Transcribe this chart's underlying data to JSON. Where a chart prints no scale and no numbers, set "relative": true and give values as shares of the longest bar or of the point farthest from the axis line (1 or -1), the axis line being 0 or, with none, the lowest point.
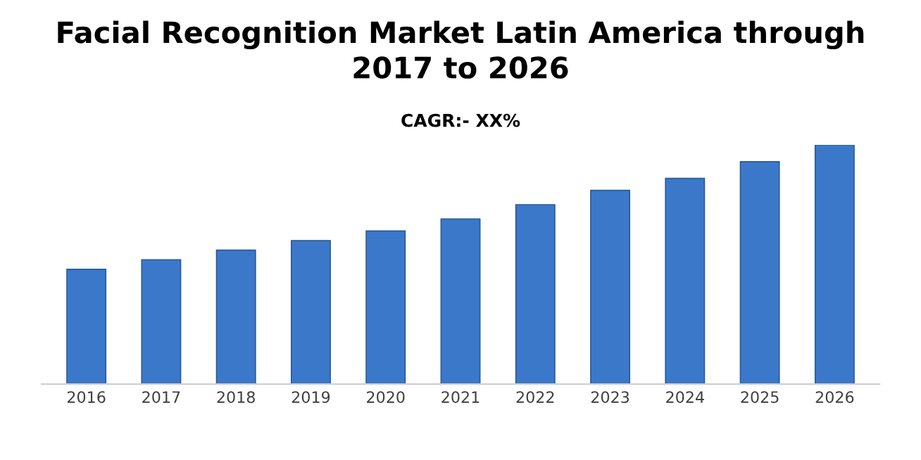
{
  "chart_data": {
    "type": "bar",
    "title": "Facial Recognition Market Latin America through\n2017 to 2026",
    "subtitle": "CAGR:- XX%",
    "categories": [
      "2016",
      "2017",
      "2018",
      "2019",
      "2020",
      "2021",
      "2022",
      "2023",
      "2024",
      "2025",
      "2026"
    ],
    "values": [
      0.48,
      0.52,
      0.56,
      0.6,
      0.64,
      0.69,
      0.75,
      0.81,
      0.86,
      0.93,
      1
    ],
    "color": "#3b78c9",
    "relative": true,
    "grid": false,
    "legend": false
  }
}
